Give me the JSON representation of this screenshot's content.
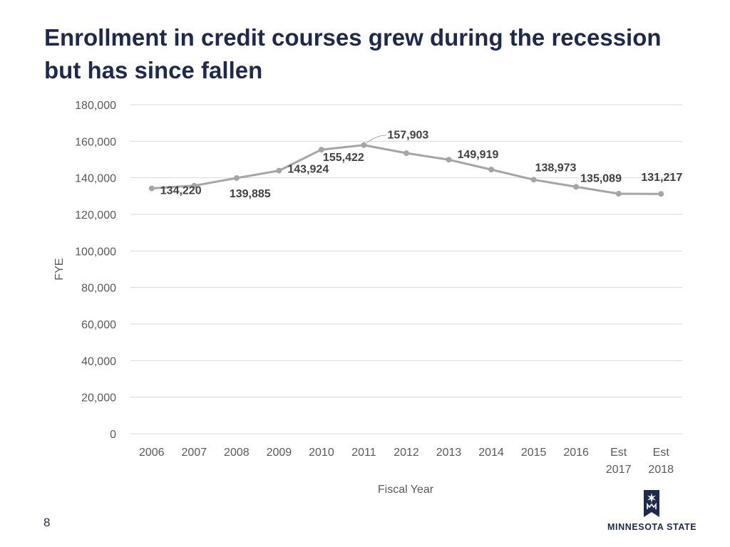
{
  "slide": {
    "title": "Enrollment in credit courses grew during the recession but has since fallen",
    "page_number": "8"
  },
  "logo": {
    "text": "MINNESOTA STATE",
    "icon": "minnesota-state-star-icon"
  },
  "colors": {
    "title": "#1d2a4d",
    "line": "#a5a5a5",
    "grid": "#d9d9d9",
    "label": "#404040"
  },
  "chart_data": {
    "type": "line",
    "categories": [
      "2006",
      "2007",
      "2008",
      "2009",
      "2010",
      "2011",
      "2012",
      "2013",
      "2014",
      "2015",
      "2016",
      "Est 2017",
      "Est 2018"
    ],
    "series": [
      {
        "values": [
          134220,
          135700,
          139885,
          143924,
          155422,
          157903,
          153500,
          149919,
          144500,
          138973,
          135089,
          131300,
          131217
        ]
      }
    ],
    "data_labels": [
      {
        "index": 0,
        "text": "134,220"
      },
      {
        "index": 2,
        "text": "139,885"
      },
      {
        "index": 3,
        "text": "143,924"
      },
      {
        "index": 4,
        "text": "155,422"
      },
      {
        "index": 5,
        "text": "157,903"
      },
      {
        "index": 7,
        "text": "149,919"
      },
      {
        "index": 9,
        "text": "138,973"
      },
      {
        "index": 10,
        "text": "135,089"
      },
      {
        "index": 12,
        "text": "131,217"
      }
    ],
    "xlabel": "Fiscal Year",
    "ylabel": "FYE",
    "ylim": [
      0,
      180000
    ],
    "yticks": [
      "0",
      "20,000",
      "40,000",
      "60,000",
      "80,000",
      "100,000",
      "120,000",
      "140,000",
      "160,000",
      "180,000"
    ],
    "grid": true,
    "legend": "none"
  }
}
